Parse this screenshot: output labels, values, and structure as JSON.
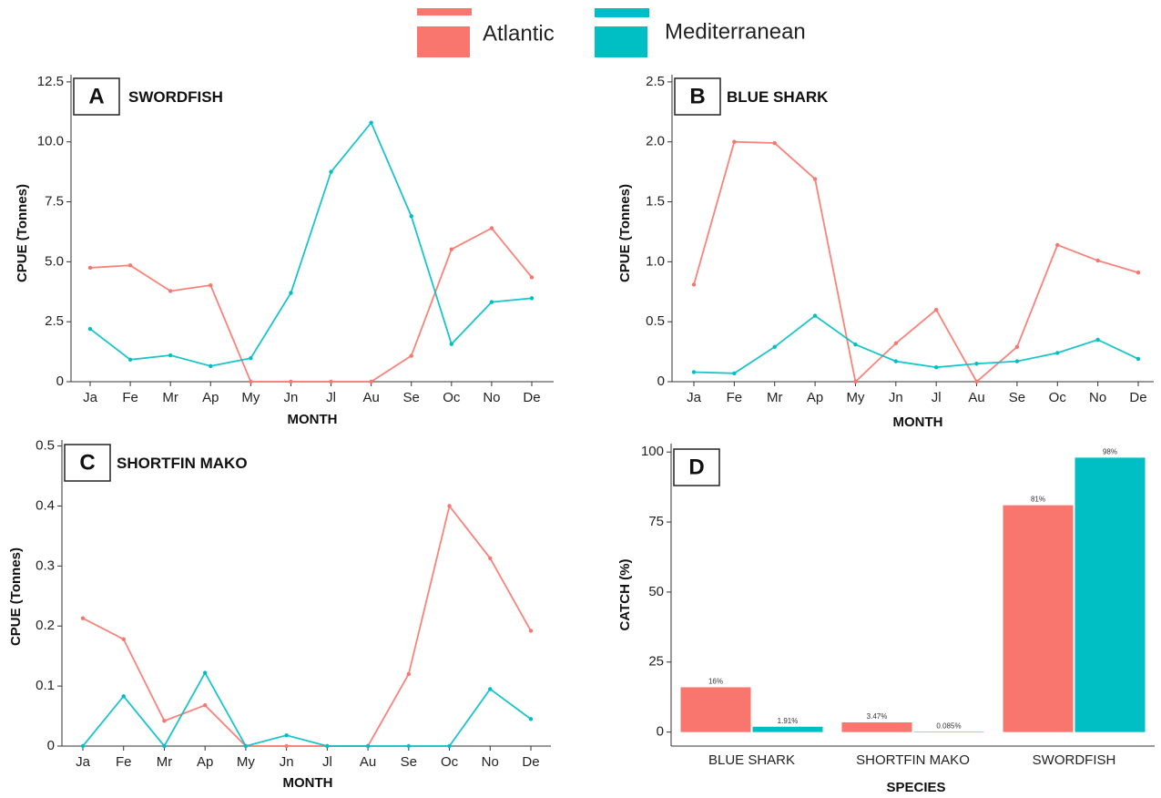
{
  "legend": {
    "items": [
      {
        "label": "Atlantic",
        "color": "#F8766D"
      },
      {
        "label": "Mediterranean",
        "color": "#00BFC4"
      }
    ]
  },
  "chart_data": [
    {
      "id": "A",
      "type": "line",
      "letter": "A",
      "title": "SWORDFISH",
      "xlabel": "MONTH",
      "ylabel": "CPUE (Tonnes)",
      "x": [
        "Ja",
        "Fe",
        "Mr",
        "Ap",
        "My",
        "Jn",
        "Jl",
        "Au",
        "Se",
        "Oc",
        "No",
        "De"
      ],
      "ylim": [
        0,
        12.8
      ],
      "yticks": [
        "0",
        "2.5",
        "5.0",
        "7.5",
        "10.0",
        "12.5"
      ],
      "ytick_values": [
        0,
        2.5,
        5.0,
        7.5,
        10.0,
        12.5
      ],
      "series": [
        {
          "name": "Atlantic",
          "color": "#F8766D",
          "values": [
            4.75,
            4.85,
            3.78,
            4.02,
            0,
            0,
            0,
            0,
            1.08,
            5.52,
            6.4,
            4.35
          ]
        },
        {
          "name": "Mediterranean",
          "color": "#00BFC4",
          "values": [
            2.2,
            0.92,
            1.1,
            0.65,
            0.98,
            3.7,
            8.75,
            10.8,
            6.9,
            1.57,
            3.32,
            3.48
          ]
        }
      ]
    },
    {
      "id": "B",
      "type": "line",
      "letter": "B",
      "title": "BLUE SHARK",
      "xlabel": "MONTH",
      "ylabel": "CPUE (Tonnes)",
      "x": [
        "Ja",
        "Fe",
        "Mr",
        "Ap",
        "My",
        "Jn",
        "Jl",
        "Au",
        "Se",
        "Oc",
        "No",
        "De"
      ],
      "ylim": [
        0,
        2.56
      ],
      "yticks": [
        "0",
        "0.5",
        "1.0",
        "1.5",
        "2.0",
        "2.5"
      ],
      "ytick_values": [
        0,
        0.5,
        1.0,
        1.5,
        2.0,
        2.5
      ],
      "series": [
        {
          "name": "Atlantic",
          "color": "#F8766D",
          "values": [
            0.81,
            2.0,
            1.99,
            1.69,
            0,
            0.32,
            0.6,
            0,
            0.29,
            1.14,
            1.01,
            0.91
          ]
        },
        {
          "name": "Mediterranean",
          "color": "#00BFC4",
          "values": [
            0.08,
            0.07,
            0.29,
            0.55,
            0.31,
            0.17,
            0.12,
            0.15,
            0.17,
            0.24,
            0.35,
            0.19
          ]
        }
      ]
    },
    {
      "id": "C",
      "type": "line",
      "letter": "C",
      "title": "SHORTFIN MAKO",
      "xlabel": "MONTH",
      "ylabel": "CPUE (Tonnes)",
      "x": [
        "Ja",
        "Fe",
        "Mr",
        "Ap",
        "My",
        "Jn",
        "Jl",
        "Au",
        "Se",
        "Oc",
        "No",
        "De"
      ],
      "ylim": [
        0,
        0.51
      ],
      "yticks": [
        "0",
        "0.1",
        "0.2",
        "0.3",
        "0.4",
        "0.5"
      ],
      "ytick_values": [
        0,
        0.1,
        0.2,
        0.3,
        0.4,
        0.5
      ],
      "series": [
        {
          "name": "Atlantic",
          "color": "#F8766D",
          "values": [
            0.213,
            0.178,
            0.042,
            0.068,
            0,
            0,
            0,
            0,
            0.12,
            0.4,
            0.313,
            0.192
          ]
        },
        {
          "name": "Mediterranean",
          "color": "#00BFC4",
          "values": [
            0,
            0.083,
            0,
            0.122,
            0,
            0.018,
            0,
            0,
            0,
            0,
            0.095,
            0.045
          ]
        }
      ]
    },
    {
      "id": "D",
      "type": "bar",
      "letter": "D",
      "xlabel": "SPECIES",
      "ylabel": "CATCH (%)",
      "categories": [
        "BLUE SHARK",
        "SHORTFIN MAKO",
        "SWORDFISH"
      ],
      "ylim": [
        -5,
        103
      ],
      "yticks": [
        "0",
        "25",
        "50",
        "75",
        "100"
      ],
      "ytick_values": [
        0,
        25,
        50,
        75,
        100
      ],
      "series": [
        {
          "name": "Atlantic",
          "color": "#F8766D",
          "values": [
            16,
            3.47,
            81
          ],
          "labels": [
            "16%",
            "3.47%",
            "81%"
          ]
        },
        {
          "name": "Mediterranean",
          "color": "#00BFC4",
          "values": [
            1.91,
            0.085,
            98
          ],
          "labels": [
            "1.91%",
            "0.085%",
            "98%"
          ]
        }
      ]
    }
  ]
}
